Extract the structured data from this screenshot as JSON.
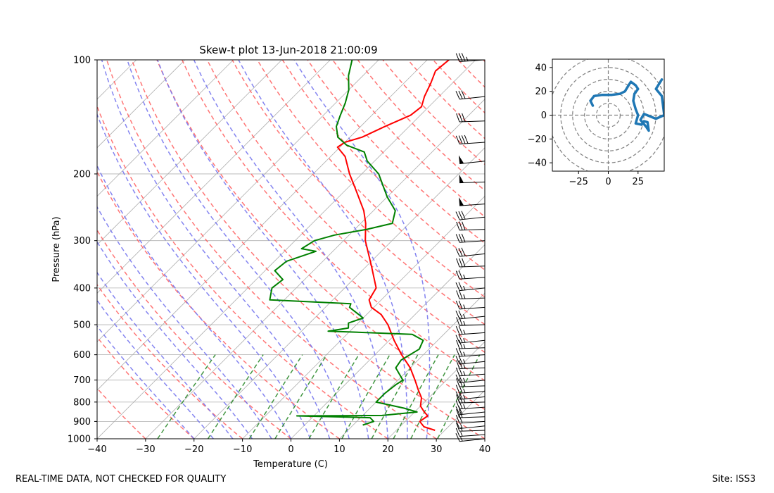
{
  "footer": {
    "left": "REAL-TIME DATA, NOT CHECKED FOR QUALITY",
    "right": "Site: ISS3"
  },
  "chart_data": [
    {
      "type": "skew-t",
      "title": "Skew-t plot 13-Jun-2018 21:00:09",
      "xlabel": "Temperature (C)",
      "ylabel": "Pressure (hPa)",
      "xlim": [
        -40,
        40
      ],
      "ylim": [
        1000,
        100
      ],
      "y_scale": "log",
      "grid": true,
      "x_ticks": [
        -40,
        -30,
        -20,
        -10,
        0,
        10,
        20,
        30,
        40
      ],
      "y_ticks": [
        100,
        200,
        300,
        400,
        500,
        600,
        700,
        800,
        900,
        1000
      ],
      "colors": {
        "temperature": "#ff0000",
        "dewpoint": "#008000",
        "dry_adiabat": "#ff6666",
        "moist_adiabat": "#7777ee",
        "mixing_ratio": "#2e8b2e",
        "isotherm": "#b0b0b0"
      },
      "series": [
        {
          "name": "temperature",
          "color": "#ff0000",
          "points": [
            {
              "p": 950,
              "t": 28.0
            },
            {
              "p": 930,
              "t": 25.0
            },
            {
              "p": 900,
              "t": 23.0
            },
            {
              "p": 870,
              "t": 23.5
            },
            {
              "p": 850,
              "t": 22.0
            },
            {
              "p": 820,
              "t": 20.0
            },
            {
              "p": 780,
              "t": 18.5
            },
            {
              "p": 740,
              "t": 16.0
            },
            {
              "p": 700,
              "t": 13.5
            },
            {
              "p": 650,
              "t": 10.0
            },
            {
              "p": 600,
              "t": 5.5
            },
            {
              "p": 550,
              "t": 1.0
            },
            {
              "p": 500,
              "t": -3.5
            },
            {
              "p": 470,
              "t": -7.0
            },
            {
              "p": 450,
              "t": -10.5
            },
            {
              "p": 430,
              "t": -12.5
            },
            {
              "p": 400,
              "t": -13.5
            },
            {
              "p": 350,
              "t": -19.0
            },
            {
              "p": 300,
              "t": -25.5
            },
            {
              "p": 270,
              "t": -29.0
            },
            {
              "p": 250,
              "t": -32.0
            },
            {
              "p": 220,
              "t": -38.0
            },
            {
              "p": 200,
              "t": -42.5
            },
            {
              "p": 180,
              "t": -47.0
            },
            {
              "p": 170,
              "t": -50.5
            },
            {
              "p": 165,
              "t": -50.0
            },
            {
              "p": 160,
              "t": -47.5
            },
            {
              "p": 150,
              "t": -45.0
            },
            {
              "p": 140,
              "t": -42.0
            },
            {
              "p": 133,
              "t": -41.5
            },
            {
              "p": 125,
              "t": -43.0
            },
            {
              "p": 115,
              "t": -44.5
            },
            {
              "p": 107,
              "t": -46.0
            },
            {
              "p": 100,
              "t": -45.5
            }
          ]
        },
        {
          "name": "dewpoint",
          "color": "#008000",
          "points": [
            {
              "p": 920,
              "t": 12.0
            },
            {
              "p": 900,
              "t": 13.5
            },
            {
              "p": 880,
              "t": 12.0
            },
            {
              "p": 870,
              "t": -3.5
            },
            {
              "p": 868,
              "t": 14.0
            },
            {
              "p": 850,
              "t": 20.5
            },
            {
              "p": 830,
              "t": 17.0
            },
            {
              "p": 800,
              "t": 10.0
            },
            {
              "p": 760,
              "t": 10.0
            },
            {
              "p": 720,
              "t": 10.5
            },
            {
              "p": 700,
              "t": 11.0
            },
            {
              "p": 650,
              "t": 7.0
            },
            {
              "p": 620,
              "t": 6.5
            },
            {
              "p": 580,
              "t": 8.0
            },
            {
              "p": 550,
              "t": 7.0
            },
            {
              "p": 530,
              "t": 3.5
            },
            {
              "p": 520,
              "t": -14.5
            },
            {
              "p": 510,
              "t": -11.0
            },
            {
              "p": 495,
              "t": -12.0
            },
            {
              "p": 480,
              "t": -10.0
            },
            {
              "p": 450,
              "t": -15.0
            },
            {
              "p": 440,
              "t": -15.5
            },
            {
              "p": 430,
              "t": -33.0
            },
            {
              "p": 400,
              "t": -35.0
            },
            {
              "p": 380,
              "t": -34.5
            },
            {
              "p": 360,
              "t": -38.0
            },
            {
              "p": 340,
              "t": -37.5
            },
            {
              "p": 320,
              "t": -33.5
            },
            {
              "p": 315,
              "t": -37.0
            },
            {
              "p": 300,
              "t": -36.0
            },
            {
              "p": 290,
              "t": -33.0
            },
            {
              "p": 280,
              "t": -27.5
            },
            {
              "p": 270,
              "t": -23.5
            },
            {
              "p": 250,
              "t": -25.5
            },
            {
              "p": 230,
              "t": -30.0
            },
            {
              "p": 200,
              "t": -36.5
            },
            {
              "p": 185,
              "t": -41.5
            },
            {
              "p": 175,
              "t": -44.0
            },
            {
              "p": 168,
              "t": -49.0
            },
            {
              "p": 160,
              "t": -52.5
            },
            {
              "p": 150,
              "t": -55.0
            },
            {
              "p": 140,
              "t": -56.5
            },
            {
              "p": 130,
              "t": -58.0
            },
            {
              "p": 120,
              "t": -60.0
            },
            {
              "p": 110,
              "t": -63.0
            },
            {
              "p": 100,
              "t": -65.5
            }
          ]
        }
      ],
      "wind_barbs": [
        {
          "p": 1000,
          "speed_kt": 15
        },
        {
          "p": 975,
          "speed_kt": 15
        },
        {
          "p": 950,
          "speed_kt": 15
        },
        {
          "p": 925,
          "speed_kt": 15
        },
        {
          "p": 900,
          "speed_kt": 20
        },
        {
          "p": 875,
          "speed_kt": 20
        },
        {
          "p": 850,
          "speed_kt": 20
        },
        {
          "p": 825,
          "speed_kt": 25
        },
        {
          "p": 800,
          "speed_kt": 25
        },
        {
          "p": 775,
          "speed_kt": 25
        },
        {
          "p": 750,
          "speed_kt": 25
        },
        {
          "p": 725,
          "speed_kt": 25
        },
        {
          "p": 700,
          "speed_kt": 25
        },
        {
          "p": 675,
          "speed_kt": 25
        },
        {
          "p": 650,
          "speed_kt": 25
        },
        {
          "p": 625,
          "speed_kt": 25
        },
        {
          "p": 600,
          "speed_kt": 25
        },
        {
          "p": 575,
          "speed_kt": 25
        },
        {
          "p": 550,
          "speed_kt": 25
        },
        {
          "p": 525,
          "speed_kt": 25
        },
        {
          "p": 500,
          "speed_kt": 25
        },
        {
          "p": 475,
          "speed_kt": 25
        },
        {
          "p": 450,
          "speed_kt": 25
        },
        {
          "p": 425,
          "speed_kt": 25
        },
        {
          "p": 400,
          "speed_kt": 25
        },
        {
          "p": 375,
          "speed_kt": 25
        },
        {
          "p": 350,
          "speed_kt": 30
        },
        {
          "p": 325,
          "speed_kt": 30
        },
        {
          "p": 300,
          "speed_kt": 30
        },
        {
          "p": 280,
          "speed_kt": 30
        },
        {
          "p": 260,
          "speed_kt": 30
        },
        {
          "p": 240,
          "speed_kt": 50
        },
        {
          "p": 210,
          "speed_kt": 50
        },
        {
          "p": 185,
          "speed_kt": 50
        },
        {
          "p": 165,
          "speed_kt": 40
        },
        {
          "p": 145,
          "speed_kt": 30
        },
        {
          "p": 125,
          "speed_kt": 30
        },
        {
          "p": 100,
          "speed_kt": 35
        }
      ]
    },
    {
      "type": "hodograph",
      "xlim": [
        -47,
        47
      ],
      "ylim": [
        -47,
        47
      ],
      "x_ticks": [
        -25,
        0,
        25
      ],
      "y_ticks": [
        -40,
        -20,
        0,
        20,
        40
      ],
      "rings": [
        10,
        20,
        30,
        40,
        50
      ],
      "color": "#1f77b4",
      "points": [
        {
          "u": -13,
          "v": 8
        },
        {
          "u": -15,
          "v": 12
        },
        {
          "u": -12,
          "v": 16
        },
        {
          "u": -5,
          "v": 17
        },
        {
          "u": 3,
          "v": 17
        },
        {
          "u": 10,
          "v": 18
        },
        {
          "u": 14,
          "v": 20
        },
        {
          "u": 17,
          "v": 25
        },
        {
          "u": 19,
          "v": 28
        },
        {
          "u": 23,
          "v": 25
        },
        {
          "u": 25,
          "v": 22
        },
        {
          "u": 22,
          "v": 18
        },
        {
          "u": 21,
          "v": 12
        },
        {
          "u": 23,
          "v": 5
        },
        {
          "u": 25,
          "v": 0
        },
        {
          "u": 23,
          "v": -7
        },
        {
          "u": 28,
          "v": -8
        },
        {
          "u": 30,
          "v": -5
        },
        {
          "u": 33,
          "v": -6
        },
        {
          "u": 34,
          "v": -13
        },
        {
          "u": 32,
          "v": -10
        },
        {
          "u": 27,
          "v": -4
        },
        {
          "u": 30,
          "v": 1
        },
        {
          "u": 40,
          "v": -3
        },
        {
          "u": 47,
          "v": 0
        },
        {
          "u": 45,
          "v": 16
        },
        {
          "u": 40,
          "v": 22
        },
        {
          "u": 45,
          "v": 30
        }
      ]
    }
  ]
}
